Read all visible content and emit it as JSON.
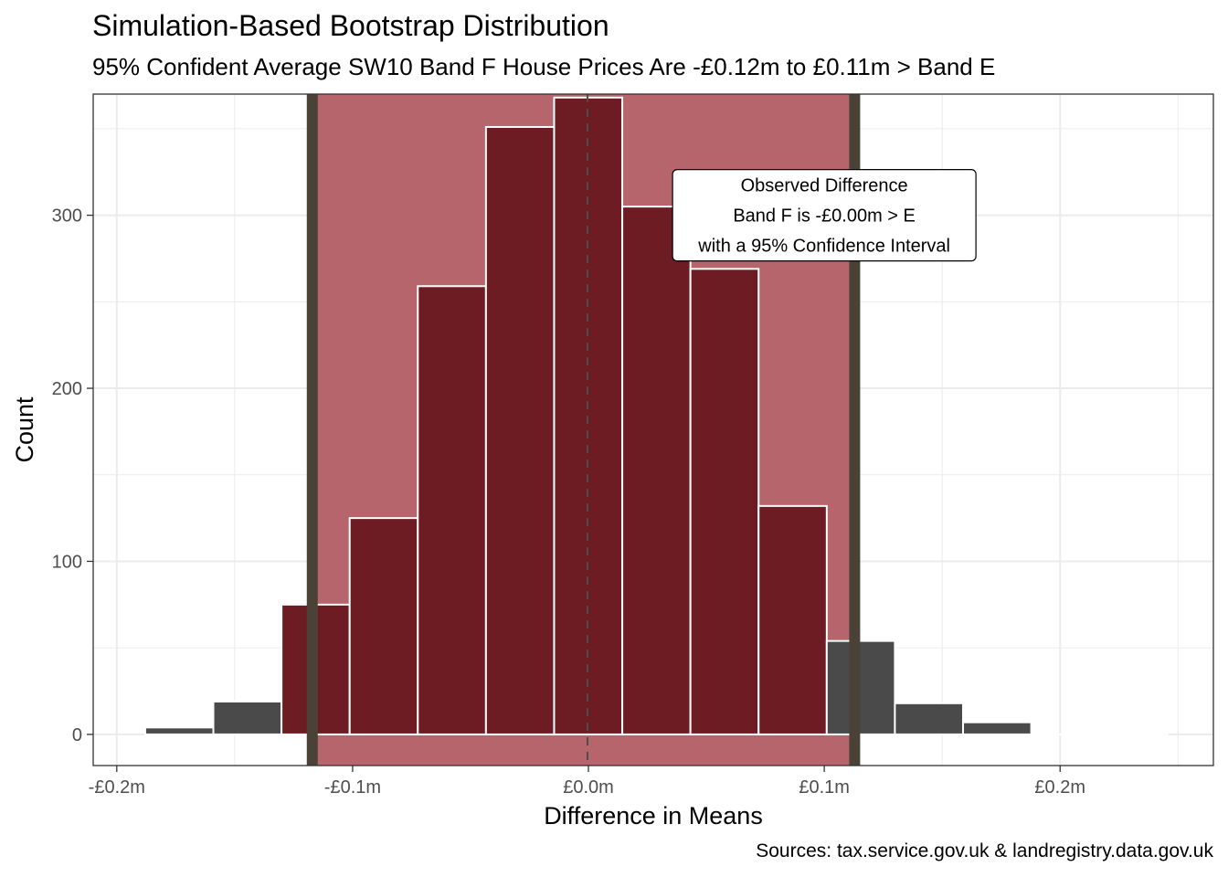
{
  "title": "Simulation-Based Bootstrap Distribution",
  "subtitle": "95% Confident Average SW10 Band F House Prices Are -£0.12m to £0.11m > Band E",
  "caption": "Sources: tax.service.gov.uk & landregistry.data.gov.uk",
  "colors": {
    "bar_outside": "#4a4a4a",
    "bar_inside": "#6e1c24",
    "ci_shade": "#b5656b",
    "ci_line": "#4a4236",
    "bar_outline": "#ffffff",
    "grid": "#ebebeb",
    "panel_border": "#333333"
  },
  "chart_data": {
    "type": "bar",
    "subtype": "histogram",
    "xlabel": "Difference in Means",
    "ylabel": "Count",
    "xlim": [
      -0.21,
      0.265
    ],
    "ylim": [
      -18,
      370
    ],
    "x_ticks": [
      -0.2,
      -0.1,
      0.0,
      0.1,
      0.2
    ],
    "x_tick_labels": [
      "-£0.2m",
      "-£0.1m",
      "£0.0m",
      "£0.1m",
      "£0.2m"
    ],
    "y_ticks": [
      0,
      100,
      200,
      300
    ],
    "y_tick_labels": [
      "0",
      "100",
      "200",
      "300"
    ],
    "bin_width": 0.0289,
    "bins": [
      {
        "center": -0.1735,
        "count": 4
      },
      {
        "center": -0.1446,
        "count": 19
      },
      {
        "center": -0.1157,
        "count": 75
      },
      {
        "center": -0.0868,
        "count": 125
      },
      {
        "center": -0.0579,
        "count": 259
      },
      {
        "center": -0.029,
        "count": 351
      },
      {
        "center": -0.0001,
        "count": 368
      },
      {
        "center": 0.0288,
        "count": 305
      },
      {
        "center": 0.0577,
        "count": 269
      },
      {
        "center": 0.0866,
        "count": 132
      },
      {
        "center": 0.1155,
        "count": 54
      },
      {
        "center": 0.1444,
        "count": 18
      },
      {
        "center": 0.1733,
        "count": 7
      },
      {
        "center": 0.2022,
        "count": 0
      },
      {
        "center": 0.2311,
        "count": 0
      }
    ],
    "ci": [
      -0.1171,
      0.1129
    ],
    "observed": -0.0004,
    "annotation": {
      "lines": [
        "Observed Difference",
        "Band F is -£0.00m > E",
        "with a 95% Confidence Interval"
      ],
      "x": 0.1,
      "y": 300
    },
    "grid": true,
    "legend": "none"
  }
}
